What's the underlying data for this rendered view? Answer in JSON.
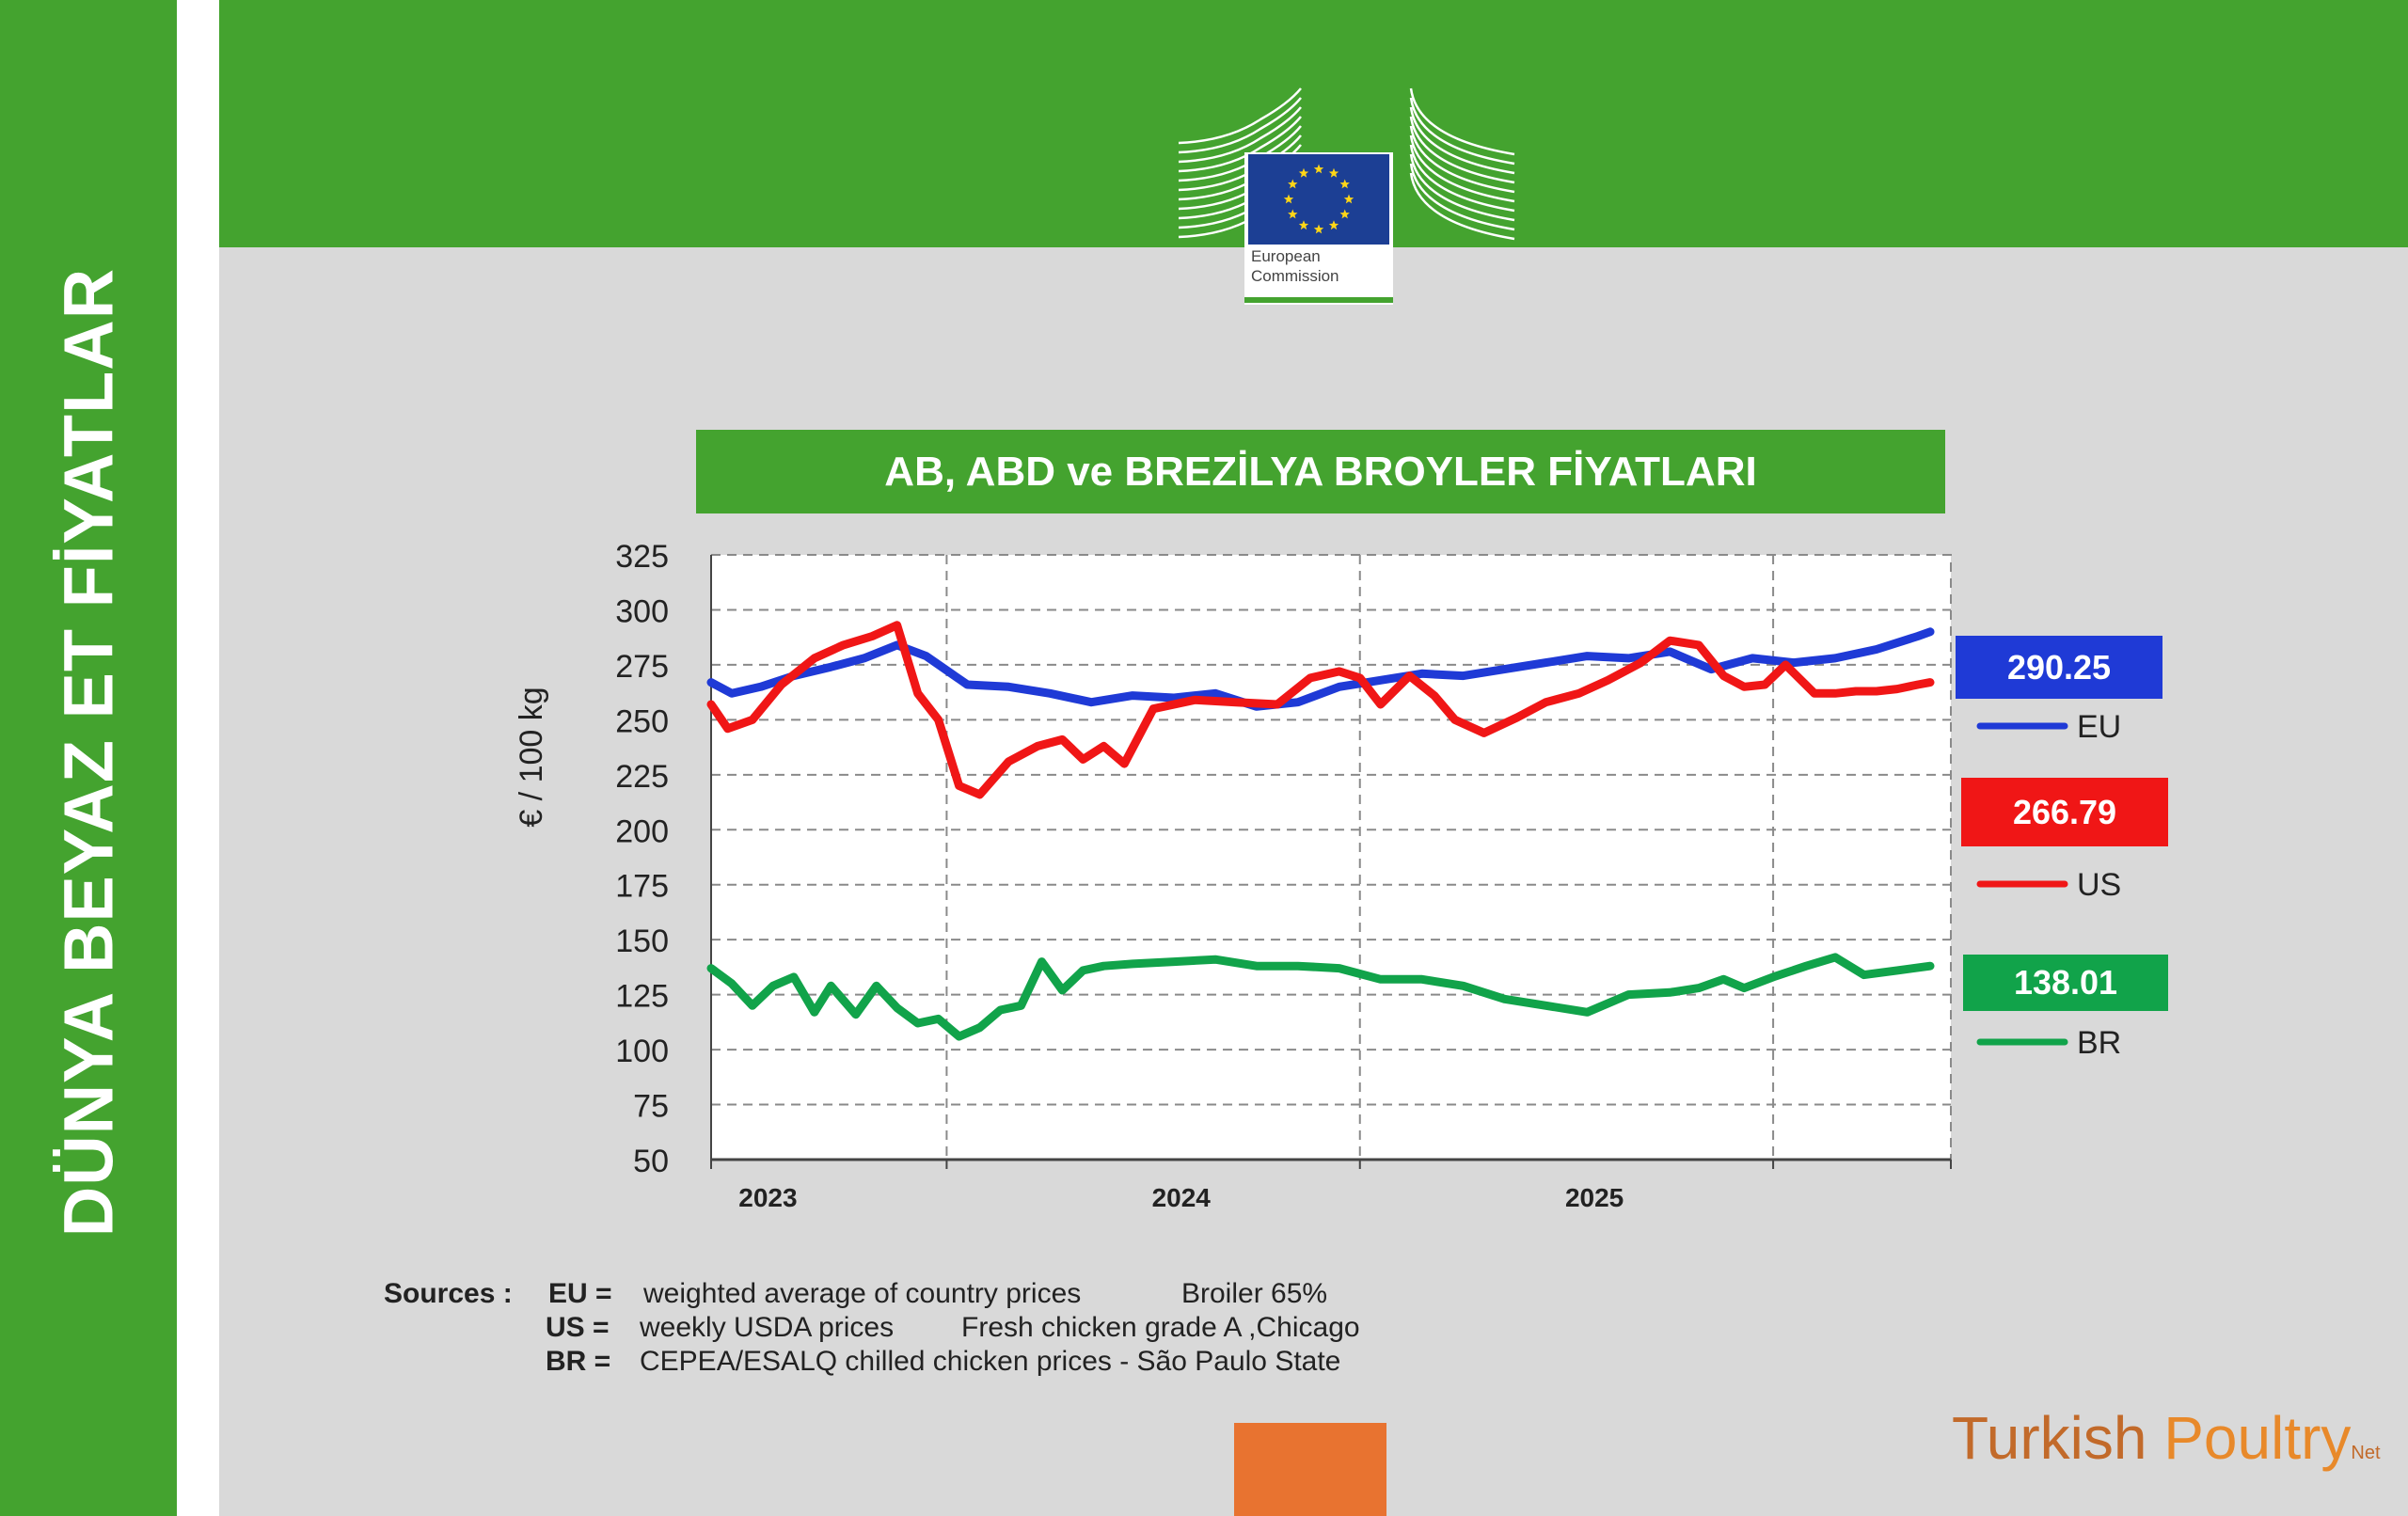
{
  "side_title": "DÜNYA BEYAZ ET FİYATLAR",
  "logo": {
    "line1": "European",
    "line2": "Commission"
  },
  "title": "AB, ABD ve BREZİLYA BROYLER FİYATLARI",
  "colors": {
    "green": "#44a32f",
    "eu": "#1f3ad6",
    "us": "#f01616",
    "br": "#11a34a",
    "orange": "#e87330"
  },
  "chart_data": {
    "type": "line",
    "title": "AB, ABD ve BREZİLYA BROYLER FİYATLARI",
    "xlabel": "",
    "ylabel": "€ / 100 kg",
    "ylim": [
      50,
      325
    ],
    "yticks": [
      325,
      300,
      275,
      250,
      225,
      200,
      175,
      150,
      125,
      100,
      75,
      50
    ],
    "xlim": [
      2022.43,
      2025.43
    ],
    "xticks": [
      {
        "label": "2023",
        "at": 2023
      },
      {
        "label": "2024",
        "at": 2024
      },
      {
        "label": "2025",
        "at": 2025
      }
    ],
    "grid": true,
    "legend": "right",
    "series": [
      {
        "name": "EU",
        "latest": "290.25",
        "color": "#1f3ad6",
        "x": [
          2022.43,
          2022.48,
          2022.55,
          2022.63,
          2022.72,
          2022.8,
          2022.88,
          2022.95,
          2023.05,
          2023.15,
          2023.25,
          2023.35,
          2023.45,
          2023.55,
          2023.65,
          2023.75,
          2023.85,
          2023.95,
          2024.05,
          2024.15,
          2024.25,
          2024.35,
          2024.45,
          2024.55,
          2024.65,
          2024.75,
          2024.85,
          2024.95,
          2025.05,
          2025.15,
          2025.25,
          2025.35,
          2025.38
        ],
        "y": [
          267,
          262,
          265,
          270,
          274,
          278,
          284,
          279,
          266,
          265,
          262,
          258,
          261,
          260,
          262,
          256,
          258,
          265,
          268,
          271,
          270,
          273,
          276,
          279,
          278,
          281,
          273,
          278,
          276,
          278,
          282,
          288,
          290
        ]
      },
      {
        "name": "US",
        "latest": "266.79",
        "color": "#f01616",
        "x": [
          2022.43,
          2022.47,
          2022.53,
          2022.6,
          2022.68,
          2022.75,
          2022.82,
          2022.88,
          2022.93,
          2022.98,
          2023.03,
          2023.08,
          2023.15,
          2023.22,
          2023.28,
          2023.33,
          2023.38,
          2023.43,
          2023.5,
          2023.6,
          2023.7,
          2023.8,
          2023.88,
          2023.95,
          2024.0,
          2024.05,
          2024.12,
          2024.18,
          2024.23,
          2024.3,
          2024.38,
          2024.45,
          2024.53,
          2024.6,
          2024.68,
          2024.75,
          2024.82,
          2024.88,
          2024.93,
          2024.98,
          2025.03,
          2025.1,
          2025.15,
          2025.2,
          2025.25,
          2025.3,
          2025.35,
          2025.38
        ],
        "y": [
          257,
          246,
          250,
          266,
          278,
          284,
          288,
          293,
          262,
          250,
          220,
          216,
          231,
          238,
          241,
          232,
          238,
          230,
          255,
          259,
          258,
          257,
          269,
          272,
          269,
          257,
          270,
          261,
          250,
          244,
          251,
          258,
          262,
          268,
          276,
          286,
          284,
          270,
          265,
          266,
          275,
          262,
          262,
          263,
          263,
          264,
          266,
          267
        ]
      },
      {
        "name": "BR",
        "latest": "138.01",
        "color": "#11a34a",
        "x": [
          2022.43,
          2022.48,
          2022.53,
          2022.58,
          2022.63,
          2022.68,
          2022.72,
          2022.78,
          2022.83,
          2022.88,
          2022.93,
          2022.98,
          2023.03,
          2023.08,
          2023.13,
          2023.18,
          2023.23,
          2023.28,
          2023.33,
          2023.38,
          2023.45,
          2023.55,
          2023.65,
          2023.75,
          2023.85,
          2023.95,
          2024.05,
          2024.15,
          2024.25,
          2024.35,
          2024.45,
          2024.55,
          2024.65,
          2024.75,
          2024.82,
          2024.88,
          2024.93,
          2025.0,
          2025.08,
          2025.15,
          2025.22,
          2025.3,
          2025.38
        ],
        "y": [
          137,
          130,
          120,
          129,
          133,
          117,
          129,
          116,
          129,
          119,
          112,
          114,
          106,
          110,
          118,
          120,
          140,
          127,
          136,
          138,
          139,
          140,
          141,
          138,
          138,
          137,
          132,
          132,
          129,
          123,
          120,
          117,
          125,
          126,
          128,
          132,
          128,
          133,
          138,
          142,
          134,
          136,
          138
        ]
      }
    ]
  },
  "sources": {
    "label": "Sources :",
    "rows": [
      {
        "key": "EU =",
        "text": "weighted average of country prices",
        "extra": "Broiler 65%"
      },
      {
        "key": "US =",
        "text": "weekly USDA prices",
        "extra": "Fresh chicken grade A ,Chicago"
      },
      {
        "key": "BR =",
        "text": "CEPEA/ESALQ chilled chicken prices - São Paulo State",
        "extra": ""
      }
    ]
  },
  "brand": {
    "part1": "Turkish ",
    "part2": "Poultry",
    "suffix": "Net"
  }
}
